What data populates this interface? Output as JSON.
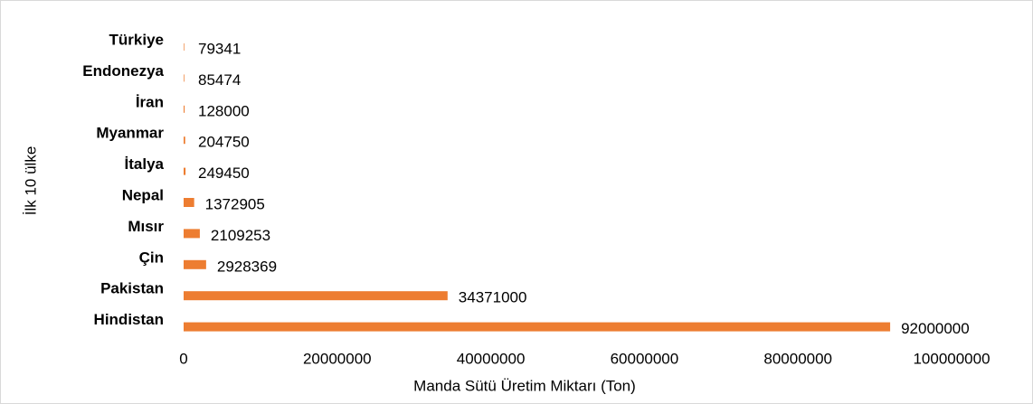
{
  "chart_data": {
    "type": "bar",
    "orientation": "horizontal",
    "categories": [
      "Türkiye",
      "Endonezya",
      "İran",
      "Myanmar",
      "İtalya",
      "Nepal",
      "Mısır",
      "Çin",
      "Pakistan",
      "Hindistan"
    ],
    "values": [
      79341,
      85474,
      128000,
      204750,
      249450,
      1372905,
      2109253,
      2928369,
      34371000,
      92000000
    ],
    "color": "#ed7d31",
    "xlim": [
      0,
      100000000
    ],
    "xticks": [
      0,
      20000000,
      40000000,
      60000000,
      80000000,
      100000000
    ],
    "xlabel": "Manda Sütü Üretim Miktarı (Ton)",
    "ylabel": "İlk 10 ülke",
    "grid": false
  }
}
